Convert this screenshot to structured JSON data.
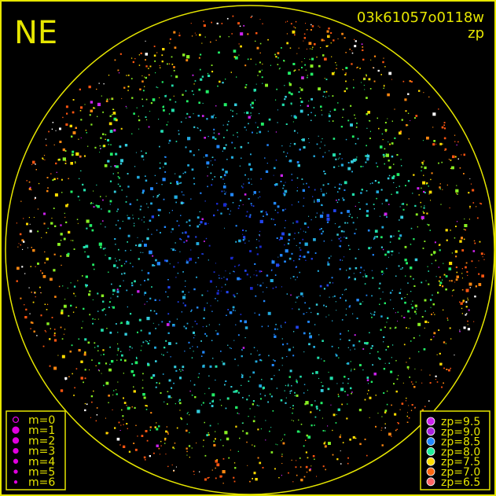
{
  "chart_data": {
    "type": "scatter",
    "title": "NE",
    "frame_id": "03k61057o0118w",
    "color_quantity": "zp",
    "size_legend": {
      "entries": [
        "m=0",
        "m=1",
        "m=2",
        "m=3",
        "m=4",
        "m=5",
        "m=6"
      ],
      "color": "#e000e0"
    },
    "color_legend": {
      "entries": [
        {
          "label": "zp=9.5",
          "color": "#cc22ee"
        },
        {
          "label": "zp=9.0",
          "color": "#aa22dd"
        },
        {
          "label": "zp=8.5",
          "color": "#2288ff"
        },
        {
          "label": "zp=8.0",
          "color": "#22ee99"
        },
        {
          "label": "zp=7.5",
          "color": "#ffdd00"
        },
        {
          "label": "zp=7.0",
          "color": "#ff6611"
        },
        {
          "label": "zp=6.5",
          "color": "#ff6666"
        }
      ]
    },
    "frame_color": "#e6e600",
    "background": "#000000"
  }
}
